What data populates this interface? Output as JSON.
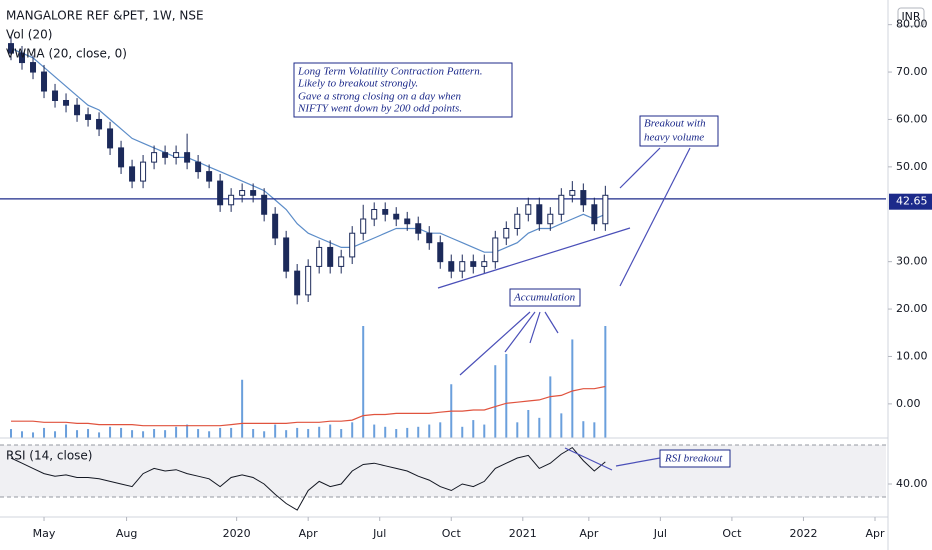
{
  "chart_data": {
    "type": "candlestick",
    "title": "MANGALORE REF &PET, 1W, NSE",
    "currency": "INR",
    "x": [
      1,
      3,
      5,
      7,
      9,
      11,
      13,
      15,
      17,
      19,
      21,
      23,
      25,
      27,
      29,
      31,
      33,
      35,
      37,
      39,
      41,
      43,
      45,
      47,
      49,
      51,
      53,
      55,
      57,
      59,
      61,
      63,
      65,
      67,
      69,
      71,
      73,
      75,
      77,
      79,
      81,
      83,
      85,
      87,
      89,
      91,
      93,
      95,
      97,
      99,
      101,
      103,
      105,
      107,
      109
    ],
    "open": [
      76,
      74,
      72,
      70,
      66,
      64,
      63,
      61,
      60,
      58,
      54,
      50,
      47,
      51,
      53,
      52,
      53,
      51,
      49,
      47,
      42,
      44,
      45,
      44,
      40,
      35,
      28,
      23,
      29,
      33,
      29,
      31,
      36,
      39,
      41,
      40,
      39,
      38,
      36,
      34,
      30,
      28,
      30,
      29,
      30,
      35,
      37,
      40,
      42,
      38,
      40,
      44,
      45,
      42,
      38
    ],
    "high": [
      77.5,
      75.5,
      73.5,
      71.5,
      67.5,
      65.5,
      64.5,
      62.5,
      61.5,
      59.5,
      55.5,
      51.5,
      52.5,
      54.5,
      54.5,
      54.5,
      57,
      52.5,
      50.5,
      48.5,
      45.5,
      46.5,
      46.5,
      45.5,
      41.5,
      36.5,
      29.5,
      30.5,
      34.5,
      34.5,
      32.5,
      37.5,
      42,
      42.5,
      42.5,
      41.5,
      40.5,
      39.5,
      37.5,
      35.5,
      31.5,
      31.5,
      31.5,
      31.5,
      36.5,
      38.5,
      41.5,
      43.5,
      43.5,
      41.5,
      45.5,
      47,
      46.5,
      43.5,
      46
    ],
    "low": [
      72.5,
      70.5,
      68.5,
      64.5,
      62.5,
      61.5,
      59.5,
      58.5,
      56.5,
      52.5,
      48.5,
      45.5,
      45.5,
      49.5,
      50.5,
      50.5,
      49.5,
      47.5,
      45.5,
      40.5,
      40.5,
      42.5,
      42.5,
      38.5,
      33.5,
      26.5,
      21,
      21.5,
      27.5,
      27.5,
      27.5,
      29.5,
      34.5,
      37.5,
      38.5,
      37.5,
      36.5,
      34.5,
      32.5,
      28.5,
      26.5,
      26.5,
      27.5,
      27.5,
      28.5,
      33.5,
      35.5,
      38.5,
      36.5,
      36.5,
      38.5,
      42.5,
      40.5,
      36.5,
      36.5
    ],
    "close": [
      74,
      72,
      70,
      66,
      64,
      63,
      61,
      60,
      58,
      54,
      50,
      47,
      51,
      53,
      52,
      53,
      51,
      49,
      47,
      42,
      44,
      45,
      44,
      40,
      35,
      28,
      23,
      29,
      33,
      29,
      31,
      36,
      39,
      41,
      40,
      39,
      38,
      36,
      34,
      30,
      28,
      30,
      29,
      30,
      35,
      37,
      40,
      42,
      38,
      40,
      44,
      45,
      42,
      38,
      44
    ],
    "up_color": "#ffffff",
    "down_color": "#1c2a5a",
    "xlim": [
      -1,
      160
    ],
    "xticks": [
      {
        "value": 7,
        "label": "May"
      },
      {
        "value": 22,
        "label": "Aug"
      },
      {
        "value": 42,
        "label": "2020"
      },
      {
        "value": 55,
        "label": "Apr"
      },
      {
        "value": 68,
        "label": "Jul"
      },
      {
        "value": 81,
        "label": "Oct"
      },
      {
        "value": 94,
        "label": "2021"
      },
      {
        "value": 106,
        "label": "Apr"
      },
      {
        "value": 119,
        "label": "Jul"
      },
      {
        "value": 132,
        "label": "Oct"
      },
      {
        "value": 145,
        "label": "2022"
      },
      {
        "value": 158,
        "label": "Apr"
      }
    ],
    "ylim": [
      -7.2,
      85.2
    ],
    "yticks": [
      {
        "value": 0,
        "label": "0.00"
      },
      {
        "value": 10,
        "label": "10.00"
      },
      {
        "value": 20,
        "label": "20.00"
      },
      {
        "value": 30,
        "label": "30.00"
      },
      {
        "value": 50,
        "label": "50.00"
      },
      {
        "value": 60,
        "label": "60.00"
      },
      {
        "value": 70,
        "label": "70.00"
      },
      {
        "value": 80,
        "label": "80.00"
      }
    ],
    "price_line": {
      "value": 43.25,
      "color": "#1c2a8a"
    },
    "last_price": {
      "value": 42.65,
      "color": "#1c2a8a"
    },
    "y2lim": [
      0,
      100
    ],
    "series": [
      {
        "name": "VWMA (20, close, 0)",
        "kind": "line",
        "color": "#5b8cc8",
        "values": [
          75,
          74,
          73,
          71,
          69,
          67,
          65,
          63,
          62,
          60,
          58,
          56,
          55,
          54,
          53,
          52,
          52,
          51,
          50,
          49,
          48,
          47,
          46,
          45,
          43,
          41,
          38,
          36,
          35,
          34,
          33,
          33,
          34,
          35,
          36,
          37,
          37,
          37,
          36,
          36,
          35,
          34,
          33,
          32,
          32,
          33,
          34,
          36,
          37,
          37,
          38,
          39,
          40,
          39,
          40
        ]
      },
      {
        "name": "Vol (20)",
        "kind": "bar",
        "axis": "y2",
        "color": "#6a9fdc",
        "values": [
          8,
          6,
          5,
          9,
          6,
          12,
          7,
          8,
          5,
          10,
          9,
          7,
          6,
          8,
          7,
          10,
          12,
          8,
          6,
          9,
          9,
          52,
          8,
          6,
          12,
          7,
          9,
          8,
          10,
          12,
          8,
          14,
          100,
          12,
          10,
          8,
          9,
          10,
          12,
          14,
          48,
          10,
          16,
          12,
          65,
          75,
          14,
          25,
          18,
          55,
          22,
          88,
          15,
          14,
          100
        ]
      },
      {
        "kind": "line",
        "axis": "y2",
        "color": "#e0533e",
        "values": [
          15,
          15,
          15,
          14,
          14,
          14,
          13,
          13,
          12,
          12,
          12,
          12,
          11,
          11,
          11,
          11,
          11,
          11,
          11,
          11,
          12,
          13,
          13,
          13,
          13,
          13,
          14,
          14,
          14,
          15,
          15,
          16,
          20,
          21,
          21,
          22,
          22,
          22,
          22,
          23,
          24,
          24,
          25,
          25,
          28,
          31,
          32,
          33,
          34,
          37,
          38,
          42,
          44,
          44,
          46
        ]
      }
    ],
    "rsi": {
      "name": "RSI (14, close)",
      "color": "#131722",
      "ylim": [
        16.2,
        73.8
      ],
      "yticks": [
        {
          "value": 40,
          "label": "40.00"
        }
      ],
      "band": [
        30,
        70
      ],
      "values": [
        60,
        56,
        52,
        48,
        46,
        47,
        45,
        45,
        44,
        42,
        40,
        38,
        48,
        52,
        50,
        51,
        48,
        46,
        44,
        38,
        45,
        47,
        45,
        40,
        32,
        25,
        20,
        35,
        42,
        38,
        40,
        50,
        55,
        56,
        54,
        52,
        50,
        46,
        43,
        38,
        35,
        40,
        38,
        42,
        52,
        56,
        60,
        62,
        52,
        56,
        63,
        68,
        58,
        50,
        57
      ]
    },
    "annotations": [
      [
        "Long Term Volatility Contraction Pattern.",
        "Likely to breakout strongly.",
        "Gave a strong closing on a day when",
        "NIFTY went down by 200 odd points."
      ],
      [
        "Breakout with",
        "heavy volume"
      ],
      [
        "Accumulation"
      ],
      [
        "RSI breakout"
      ]
    ]
  }
}
